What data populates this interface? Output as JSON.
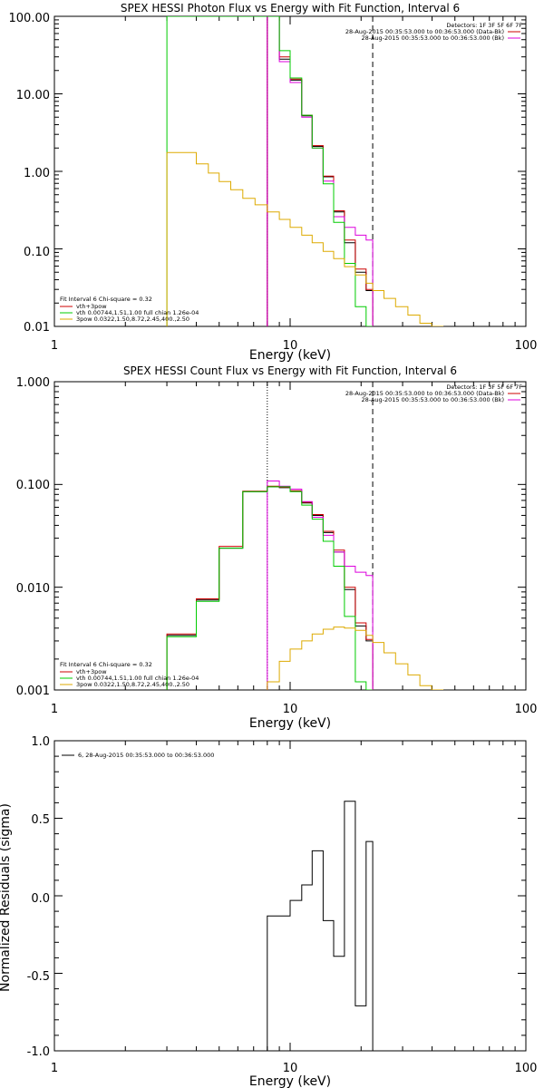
{
  "chart_data": [
    {
      "id": "photon",
      "type": "line",
      "scale": "log-log",
      "title": "SPEX HESSI Photon Flux vs Energy with Fit Function, Interval 6",
      "xlabel": "Energy (keV)",
      "ylabel": "",
      "xlim": [
        1,
        100
      ],
      "ylim": [
        0.01,
        100
      ],
      "xtick_labels": [
        "1",
        "10",
        "100"
      ],
      "ytick_labels": [
        "0.01",
        "0.10",
        "1.00",
        "10.00",
        "100.00"
      ],
      "legend_topright": [
        "Detectors: 1F 3F 5F 6F 7F",
        "28-Aug-2015 00:35:53.000 to 00:36:53.000 (Data-Bk)",
        "28-Aug-2015 00:35:53.000 to 00:36:53.000 (Bk)"
      ],
      "legend_bottomleft": [
        "Fit Interval 6   Chi-square = 0.32",
        "vth+3pow",
        "vth 0.00744,1.51,1.00  full chian 1.26e-04",
        "3pow 0.0322,1.50,8.72,2.45,400.,2.50"
      ],
      "vlines": [
        {
          "x": 8,
          "style": "dotted"
        },
        {
          "x": 22.4,
          "style": "dashed"
        }
      ],
      "series": [
        {
          "color": "#000000",
          "edges": [
            8,
            9,
            10,
            11.2,
            12.4,
            13.8,
            15.3,
            17,
            18.9,
            21,
            22.4
          ],
          "values": [
            100,
            28,
            15,
            5.2,
            2.1,
            0.85,
            0.3,
            0.12,
            0.05,
            0.029
          ]
        },
        {
          "color": "#cc0000",
          "edges": [
            8,
            9,
            10,
            11.2,
            12.4,
            13.8,
            15.3,
            17,
            18.9,
            21,
            22.4
          ],
          "values": [
            100,
            30,
            15.5,
            5.3,
            2.15,
            0.87,
            0.31,
            0.13,
            0.055,
            0.03
          ]
        },
        {
          "color": "#dd00dd",
          "edges": [
            8,
            9,
            10,
            11.2,
            12.4,
            13.8,
            15.3,
            17,
            18.9,
            21,
            22.4
          ],
          "values": [
            100,
            26,
            14,
            5.0,
            2.0,
            0.75,
            0.26,
            0.19,
            0.15,
            0.13
          ]
        },
        {
          "color": "#00cc00",
          "edges": [
            3,
            8,
            9,
            10,
            11.2,
            12.4,
            13.8,
            15.3,
            17,
            18.9,
            21,
            22.4
          ],
          "values": [
            100,
            100,
            36,
            16,
            5.3,
            2.0,
            0.69,
            0.22,
            0.065,
            0.018,
            0.0055
          ]
        },
        {
          "color": "#ddaa00",
          "edges": [
            3,
            3.5,
            4,
            4.5,
            5,
            5.6,
            6.3,
            7.1,
            8,
            9,
            10,
            11.2,
            12.4,
            13.8,
            15.3,
            17,
            18.9,
            21,
            22.4,
            25,
            28,
            31.6,
            35.5,
            39.8,
            44.7
          ],
          "values": [
            1.75,
            1.75,
            1.25,
            0.95,
            0.74,
            0.58,
            0.45,
            0.37,
            0.3,
            0.24,
            0.19,
            0.15,
            0.12,
            0.093,
            0.075,
            0.059,
            0.046,
            0.036,
            0.029,
            0.023,
            0.018,
            0.014,
            0.011,
            0.0089
          ]
        }
      ]
    },
    {
      "id": "count",
      "type": "line",
      "scale": "log-log",
      "title": "SPEX HESSI Count Flux vs Energy with Fit Function, Interval 6",
      "xlabel": "Energy (keV)",
      "ylabel": "",
      "xlim": [
        1,
        100
      ],
      "ylim": [
        0.001,
        1
      ],
      "xtick_labels": [
        "1",
        "10",
        "100"
      ],
      "ytick_labels": [
        "0.001",
        "0.010",
        "0.100",
        "1.000"
      ],
      "legend_topright": [
        "Detectors: 1F 3F 5F 6F 7F",
        "28-Aug-2015 00:35:53.000 to 00:36:53.000 (Data-Bk)",
        "28-Aug-2015 00:35:53.000 to 00:36:53.000 (Bk)"
      ],
      "legend_bottomleft": [
        "Fit Interval 6   Chi-square = 0.32",
        "vth+3pow",
        "vth 0.00744,1.51,1.00  full chian 1.26e-04",
        "3pow 0.0322,1.50,8.72,2.45,400.,2.50"
      ],
      "vlines": [
        {
          "x": 8,
          "style": "dotted"
        },
        {
          "x": 22.4,
          "style": "dashed"
        }
      ],
      "series": [
        {
          "color": "#000000",
          "edges": [
            3,
            4,
            5,
            6.3,
            8,
            9,
            10,
            11.2,
            12.4,
            13.8,
            15.3,
            17,
            18.9,
            21,
            22.4
          ],
          "values": [
            0.0034,
            0.0075,
            0.024,
            0.085,
            0.095,
            0.093,
            0.086,
            0.066,
            0.05,
            0.034,
            0.022,
            0.0095,
            0.0042,
            0.003
          ]
        },
        {
          "color": "#cc0000",
          "edges": [
            3,
            4,
            5,
            6.3,
            8,
            9,
            10,
            11.2,
            12.4,
            13.8,
            15.3,
            17,
            18.9,
            21,
            22.4
          ],
          "values": [
            0.0035,
            0.0077,
            0.025,
            0.086,
            0.096,
            0.094,
            0.087,
            0.067,
            0.051,
            0.035,
            0.023,
            0.01,
            0.0045,
            0.0031
          ]
        },
        {
          "color": "#dd00dd",
          "edges": [
            8,
            9,
            10,
            11.2,
            12.4,
            13.8,
            15.3,
            17,
            18.9,
            21,
            22.4
          ],
          "values": [
            0.108,
            0.096,
            0.09,
            0.068,
            0.048,
            0.032,
            0.022,
            0.016,
            0.014,
            0.013
          ]
        },
        {
          "color": "#00cc00",
          "edges": [
            3,
            4,
            5,
            6.3,
            8,
            9,
            10,
            11.2,
            12.4,
            13.8,
            15.3,
            17,
            18.9,
            21,
            22.4
          ],
          "values": [
            0.0033,
            0.0073,
            0.024,
            0.085,
            0.095,
            0.095,
            0.085,
            0.063,
            0.046,
            0.028,
            0.016,
            0.0052,
            0.0012,
            0.0004
          ]
        },
        {
          "color": "#ddaa00",
          "edges": [
            8,
            9,
            10,
            11.2,
            12.4,
            13.8,
            15.3,
            17,
            18.9,
            21,
            22.4,
            25,
            28,
            31.6,
            35.5,
            39.8,
            44.7
          ],
          "values": [
            0.0012,
            0.0019,
            0.0025,
            0.003,
            0.0035,
            0.0039,
            0.0041,
            0.004,
            0.0038,
            0.0034,
            0.0029,
            0.0023,
            0.0018,
            0.0014,
            0.0011,
            0.00085
          ]
        }
      ]
    },
    {
      "id": "residuals",
      "type": "line",
      "scale": "log-x",
      "title": "",
      "xlabel": "Energy (keV)",
      "ylabel": "Normalized Residuals (sigma)",
      "xlim": [
        1,
        100
      ],
      "ylim": [
        -1,
        1
      ],
      "xtick_labels": [
        "1",
        "10",
        "100"
      ],
      "ytick_labels": [
        "-1.0",
        "-0.5",
        "0.0",
        "0.5",
        "1.0"
      ],
      "legend_topleft": [
        "6, 28-Aug-2015 00:35:53.000 to 00:36:53.000"
      ],
      "series": [
        {
          "color": "#000000",
          "edges": [
            8,
            9,
            10,
            11.2,
            12.4,
            13.8,
            15.3,
            17,
            18.9,
            21,
            22.4
          ],
          "values": [
            -0.13,
            -0.13,
            -0.03,
            0.07,
            0.29,
            -0.16,
            -0.39,
            0.61,
            -0.71,
            0.35
          ]
        }
      ]
    }
  ]
}
